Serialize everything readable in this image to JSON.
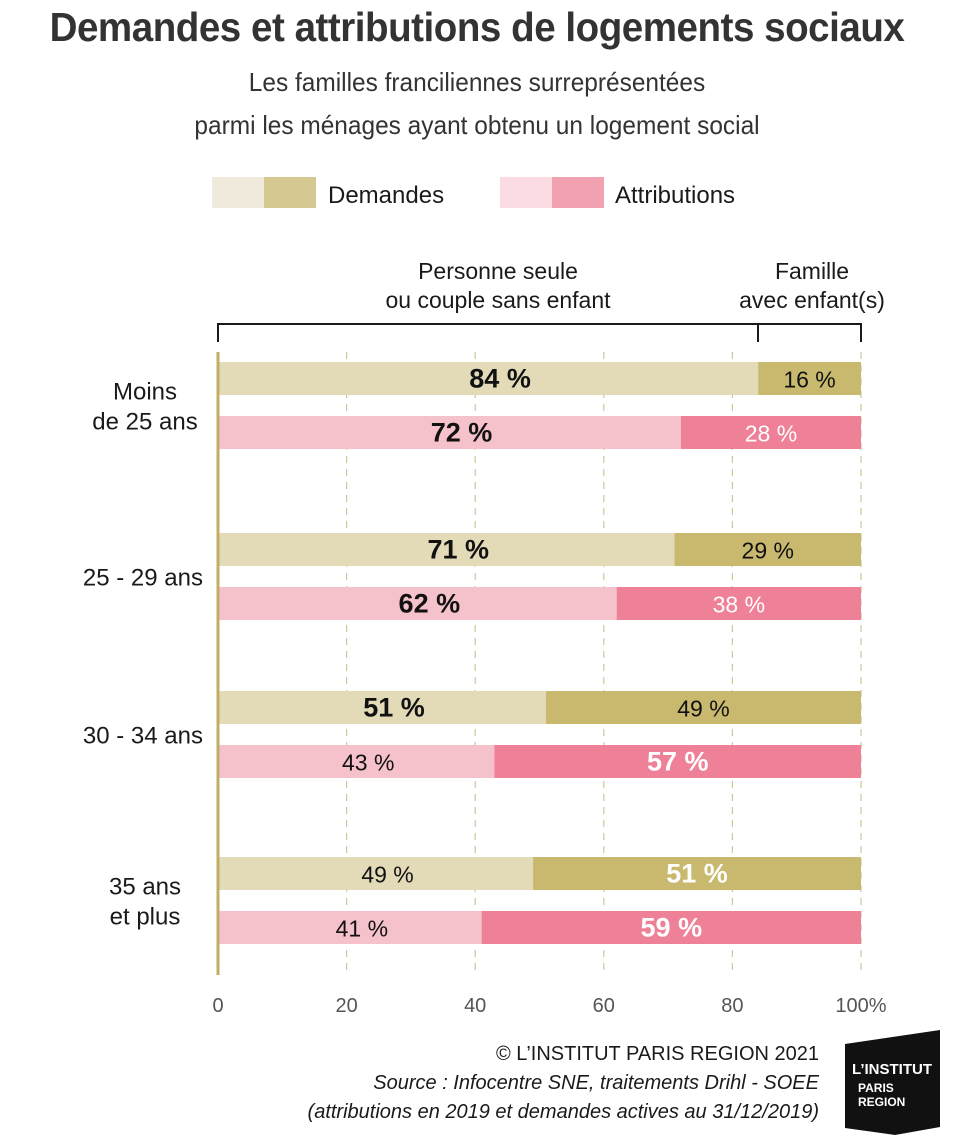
{
  "title": "Demandes et attributions de logements sociaux",
  "subtitle_line1": "Les familles franciliennes surreprésentées",
  "subtitle_line2": "parmi les ménages ayant obtenu un logement social",
  "legend": {
    "demandes": "Demandes",
    "attributions": "Attributions"
  },
  "segment_headers": {
    "left_line1": "Personne seule",
    "left_line2": "ou couple sans enfant",
    "right_line1": "Famille",
    "right_line2": "avec enfant(s)"
  },
  "groups": [
    {
      "line1": "Moins",
      "line2": "de 25 ans"
    },
    {
      "line1": "25 - 29 ans",
      "line2": ""
    },
    {
      "line1": "30 - 34 ans",
      "line2": ""
    },
    {
      "line1": "35 ans",
      "line2": "et plus"
    }
  ],
  "colors": {
    "demandes_light": "#e3dbb8",
    "demandes_dark": "#c8b96f",
    "attributions_light": "#f5c1cb",
    "attributions_dark": "#ee8197",
    "legend_demandes_light": "#efeadb",
    "legend_demandes_dark": "#d5c991",
    "legend_attributions_light": "#fbdce2",
    "legend_attributions_dark": "#f2a1b1",
    "axis": "#c0ae68",
    "grid": "#cfc49a"
  },
  "chart_data": {
    "type": "bar",
    "orientation": "horizontal",
    "stacked": true,
    "categories": [
      "Moins de 25 ans",
      "25 - 29 ans",
      "30 - 34 ans",
      "35 ans et plus"
    ],
    "series": [
      {
        "name": "Demandes",
        "segments": [
          "Personne seule ou couple sans enfant",
          "Famille avec enfant(s)"
        ],
        "values": [
          [
            84,
            16
          ],
          [
            71,
            29
          ],
          [
            51,
            49
          ],
          [
            49,
            51
          ]
        ],
        "labels": [
          [
            "84 %",
            "16 %"
          ],
          [
            "71 %",
            "29 %"
          ],
          [
            "51 %",
            "49 %"
          ],
          [
            "49 %",
            "51 %"
          ]
        ]
      },
      {
        "name": "Attributions",
        "segments": [
          "Personne seule ou couple sans enfant",
          "Famille avec enfant(s)"
        ],
        "values": [
          [
            72,
            28
          ],
          [
            62,
            38
          ],
          [
            43,
            57
          ],
          [
            41,
            59
          ]
        ],
        "labels": [
          [
            "72 %",
            "28 %"
          ],
          [
            "62 %",
            "38 %"
          ],
          [
            "43 %",
            "57 %"
          ],
          [
            "41 %",
            "59 %"
          ]
        ]
      }
    ],
    "xlim": [
      0,
      100
    ],
    "xticks": [
      0,
      20,
      40,
      60,
      80,
      100
    ],
    "xtick_labels": [
      "0",
      "20",
      "40",
      "60",
      "80",
      "100%"
    ],
    "grid": true,
    "legend_position": "top"
  },
  "footer": {
    "copyright": "© L’INSTITUT PARIS REGION 2021",
    "source_line1": "Source :  Infocentre SNE, traitements Drihl - SOEE",
    "source_line2": "(attributions en 2019 et demandes actives au 31/12/2019)"
  },
  "logo": {
    "line1": "L’INSTITUT",
    "line2": "PARIS",
    "line3": "REGION"
  }
}
